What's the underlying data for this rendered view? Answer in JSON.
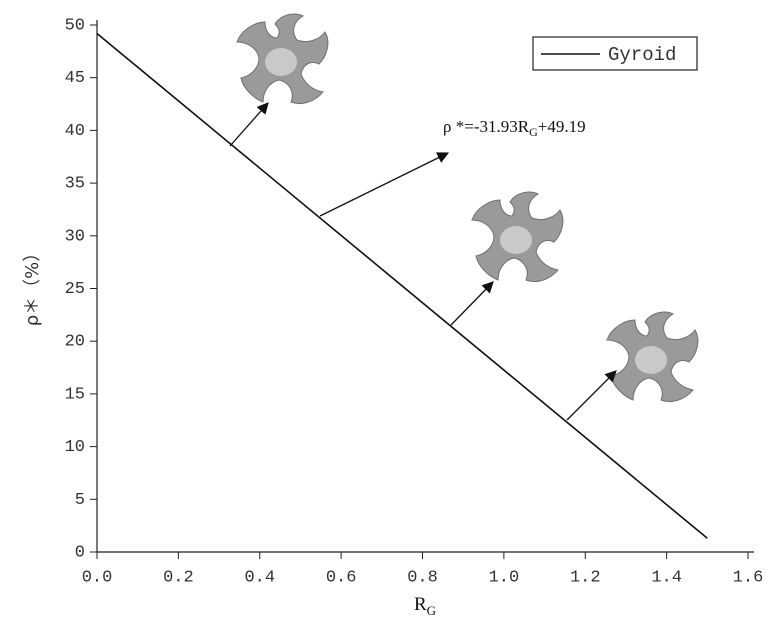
{
  "chart_data": {
    "type": "line",
    "x": [
      0,
      1.5
    ],
    "series": [
      {
        "name": "Gyroid",
        "color": "#111111",
        "values": [
          49.19,
          1.3
        ]
      }
    ],
    "xlabel": {
      "main": "R",
      "sub": "G"
    },
    "ylabel": "ρ＊（%）",
    "annotation": [
      "ρ *=-31.93R",
      "G",
      "+49.19"
    ],
    "xlim": [
      0,
      1.6
    ],
    "xticks": [
      {
        "value": 0,
        "label": "0.0"
      },
      0.2,
      0.4,
      0.6,
      0.8,
      {
        "value": 1,
        "label": "1.0"
      },
      1.2,
      1.4,
      1.6
    ],
    "ylim": [
      0,
      50
    ],
    "yticks": [
      0,
      5,
      10,
      15,
      20,
      25,
      30,
      35,
      40,
      45,
      50
    ],
    "grid": false,
    "legend": "upper right"
  }
}
